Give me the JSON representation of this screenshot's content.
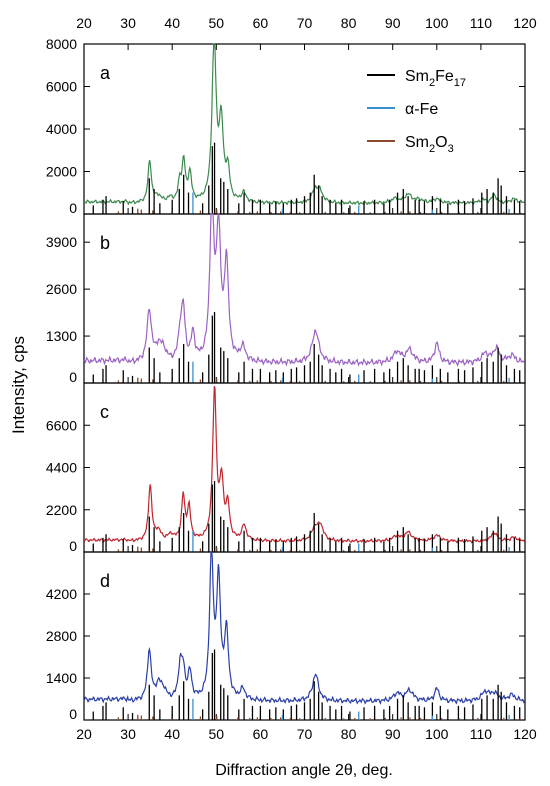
{
  "chart_data": {
    "type": "line",
    "xlabel": "Diffraction angle 2θ, deg.",
    "ylabel": "Intensity, cps",
    "xlim": [
      20,
      120
    ],
    "x_ticks": [
      20,
      30,
      40,
      50,
      60,
      70,
      80,
      90,
      100,
      110,
      120
    ],
    "legend": {
      "placement": "top-right",
      "items": [
        {
          "base": "Sm",
          "sub1": "2",
          "mid": "Fe",
          "sub2": "17",
          "color": "#000000"
        },
        {
          "base": "α-Fe",
          "sub1": "",
          "mid": "",
          "sub2": "",
          "color": "#3a8fd0"
        },
        {
          "base": "Sm",
          "sub1": "2",
          "mid": "O",
          "sub2": "3",
          "color": "#8b4a2b"
        }
      ]
    },
    "reference_lines": {
      "Sm2Fe17": {
        "color": "#000000",
        "positions": [
          22.1,
          24.3,
          25.0,
          28.9,
          31.0,
          34.8,
          35.9,
          37.2,
          40.0,
          41.6,
          42.6,
          43.7,
          46.9,
          48.3,
          49.1,
          49.6,
          51.0,
          51.7,
          52.6,
          55.1,
          56.3,
          58.2,
          60.0,
          62.1,
          63.5,
          65.2,
          67.0,
          68.2,
          70.0,
          71.3,
          72.2,
          73.2,
          74.0,
          75.8,
          77.1,
          78.4,
          80.3,
          83.5,
          85.9,
          88.0,
          89.3,
          91.1,
          92.4,
          93.5,
          95.1,
          96.0,
          97.2,
          99.0,
          100.8,
          102.5,
          104.9,
          106.3,
          108.2,
          110.2,
          111.4,
          112.8,
          113.9,
          114.6,
          115.8,
          117.6,
          118.8
        ],
        "heights": [
          0.12,
          0.2,
          0.25,
          0.18,
          0.1,
          0.5,
          0.35,
          0.15,
          0.2,
          0.35,
          0.55,
          0.3,
          0.15,
          0.4,
          0.95,
          1.0,
          0.5,
          0.45,
          0.35,
          0.15,
          0.3,
          0.2,
          0.2,
          0.15,
          0.18,
          0.15,
          0.2,
          0.22,
          0.25,
          0.3,
          0.55,
          0.4,
          0.25,
          0.2,
          0.15,
          0.2,
          0.12,
          0.18,
          0.2,
          0.15,
          0.2,
          0.3,
          0.35,
          0.25,
          0.2,
          0.2,
          0.18,
          0.25,
          0.2,
          0.15,
          0.2,
          0.18,
          0.22,
          0.3,
          0.35,
          0.3,
          0.5,
          0.4,
          0.25,
          0.2,
          0.18
        ]
      },
      "alpha_Fe": {
        "color": "#3a8fd0",
        "positions": [
          44.7,
          65.0,
          82.3,
          99.0,
          116.4
        ],
        "heights": [
          0.5,
          0.12,
          0.2,
          0.1,
          0.12
        ]
      },
      "Sm2O3": {
        "color": "#8b4a2b",
        "positions": [
          27.8,
          32.2,
          33.0,
          35.6,
          39.9,
          46.4,
          50.1,
          54.9,
          57.6,
          59.3,
          62.4,
          64.6,
          66.8,
          68.9,
          74.7,
          78.9,
          81.4,
          84.9,
          88.3,
          91.9,
          93.9,
          96.3,
          101.1,
          105.1,
          109.3,
          115.2,
          118.9
        ],
        "heights": [
          0.15,
          0.3,
          0.25,
          0.2,
          0.15,
          0.2,
          0.25,
          0.15,
          0.12,
          0.15,
          0.12,
          0.15,
          0.12,
          0.1,
          0.12,
          0.1,
          0.12,
          0.1,
          0.12,
          0.15,
          0.15,
          0.12,
          0.12,
          0.1,
          0.12,
          0.12,
          0.1
        ]
      }
    },
    "panels": [
      {
        "label": "a",
        "ylim": [
          0,
          8000
        ],
        "yticks": [
          0,
          2000,
          4000,
          6000,
          8000
        ],
        "color": "#3d8a4f",
        "baseline": 500,
        "peaks": [
          [
            34.9,
            2000,
            0.45
          ],
          [
            36.8,
            300,
            0.8
          ],
          [
            39.5,
            200,
            0.8
          ],
          [
            41.7,
            900,
            0.4
          ],
          [
            42.6,
            1900,
            0.45
          ],
          [
            44.0,
            1350,
            0.45
          ],
          [
            49.5,
            7600,
            0.55
          ],
          [
            51.1,
            3600,
            0.6
          ],
          [
            52.6,
            1400,
            0.5
          ],
          [
            56.2,
            450,
            0.6
          ],
          [
            72.4,
            600,
            0.8
          ],
          [
            73.5,
            500,
            0.8
          ],
          [
            90.5,
            200,
            1.0
          ],
          [
            93.5,
            400,
            1.0
          ],
          [
            96.0,
            150,
            1.0
          ],
          [
            100.0,
            200,
            1.0
          ],
          [
            110.5,
            150,
            1.0
          ],
          [
            113.0,
            400,
            0.6
          ],
          [
            117.5,
            200,
            1.0
          ]
        ]
      },
      {
        "label": "b",
        "ylim": [
          0,
          4680
        ],
        "yticks": [
          0,
          1300,
          2600,
          3900
        ],
        "color": "#9b63c4",
        "baseline": 550,
        "peaks": [
          [
            34.8,
            1450,
            0.6
          ],
          [
            36.9,
            400,
            0.8
          ],
          [
            38.0,
            300,
            0.8
          ],
          [
            41.8,
            700,
            0.5
          ],
          [
            42.5,
            1400,
            0.5
          ],
          [
            44.7,
            750,
            0.5
          ],
          [
            49.0,
            4200,
            0.55
          ],
          [
            50.5,
            3500,
            0.6
          ],
          [
            52.3,
            2700,
            0.55
          ],
          [
            56.0,
            400,
            0.7
          ],
          [
            72.5,
            900,
            0.9
          ],
          [
            91.0,
            300,
            1.0
          ],
          [
            93.8,
            350,
            1.0
          ],
          [
            100.0,
            550,
            0.6
          ],
          [
            111.0,
            250,
            1.0
          ],
          [
            113.5,
            400,
            0.8
          ],
          [
            117.0,
            200,
            1.0
          ]
        ]
      },
      {
        "label": "c",
        "ylim": [
          0,
          8800
        ],
        "yticks": [
          0,
          2200,
          4400,
          6600
        ],
        "color": "#c0262e",
        "baseline": 550,
        "peaks": [
          [
            35.0,
            2900,
            0.45
          ],
          [
            36.8,
            500,
            0.8
          ],
          [
            39.7,
            300,
            0.8
          ],
          [
            42.5,
            2300,
            0.45
          ],
          [
            43.8,
            1700,
            0.45
          ],
          [
            49.6,
            7800,
            0.5
          ],
          [
            51.2,
            2900,
            0.55
          ],
          [
            52.6,
            1700,
            0.5
          ],
          [
            56.3,
            800,
            0.6
          ],
          [
            72.3,
            650,
            0.8
          ],
          [
            73.6,
            800,
            0.8
          ],
          [
            90.8,
            250,
            1.0
          ],
          [
            93.5,
            450,
            1.0
          ],
          [
            100.0,
            300,
            1.0
          ],
          [
            113.0,
            450,
            0.8
          ],
          [
            117.5,
            200,
            1.0
          ]
        ]
      },
      {
        "label": "d",
        "ylim": [
          0,
          5600
        ],
        "yticks": [
          0,
          1400,
          2800,
          4200
        ],
        "color": "#2b3fa8",
        "baseline": 620,
        "peaks": [
          [
            34.8,
            1700,
            0.5
          ],
          [
            36.9,
            500,
            0.8
          ],
          [
            38.0,
            300,
            0.8
          ],
          [
            41.8,
            1100,
            0.5
          ],
          [
            42.5,
            900,
            0.5
          ],
          [
            44.0,
            900,
            0.5
          ],
          [
            48.9,
            4800,
            0.5
          ],
          [
            50.5,
            3900,
            0.55
          ],
          [
            52.3,
            2200,
            0.55
          ],
          [
            56.0,
            350,
            0.7
          ],
          [
            72.5,
            900,
            0.8
          ],
          [
            91.0,
            250,
            1.0
          ],
          [
            93.8,
            350,
            1.0
          ],
          [
            100.0,
            420,
            0.6
          ],
          [
            111.0,
            300,
            1.0
          ],
          [
            113.0,
            250,
            1.0
          ],
          [
            117.0,
            200,
            1.0
          ]
        ]
      }
    ]
  }
}
